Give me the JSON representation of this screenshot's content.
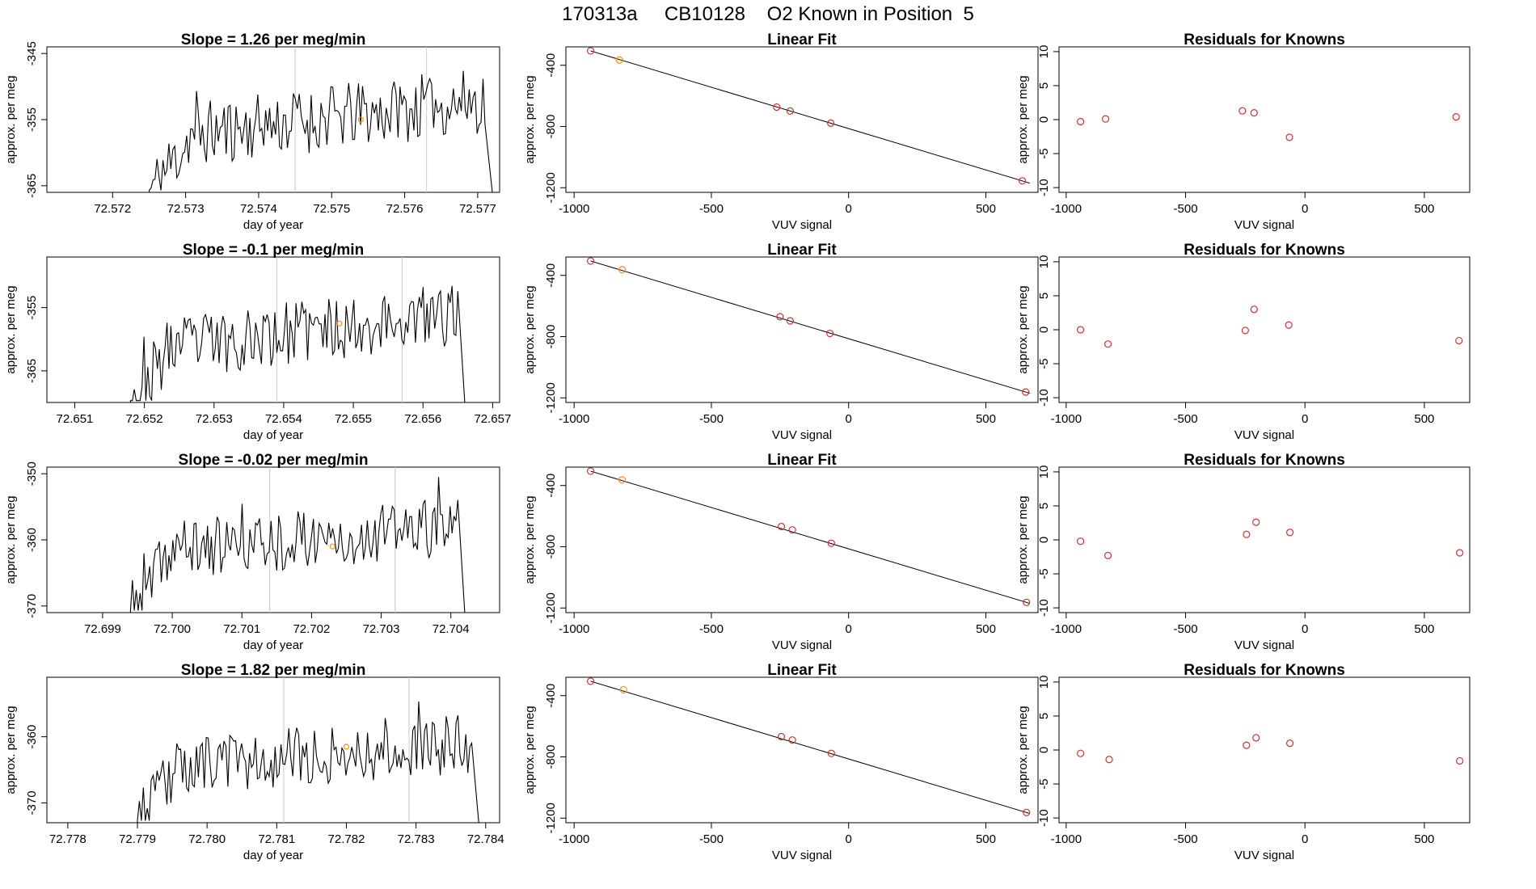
{
  "figure_title": "170313a     CB10128    O2 Known in Position  5",
  "chart_data": [
    {
      "row": 1,
      "trace": {
        "type": "line",
        "title": "Slope =  1.26  per meg/min",
        "xlabel": "day of year",
        "ylabel": "approx. per meg",
        "xlim": [
          72.5711,
          72.5773
        ],
        "ylim": [
          -366,
          -344
        ],
        "xticks": [
          "72.572",
          "72.573",
          "72.574",
          "72.575",
          "72.576",
          "72.577"
        ],
        "yticks": [
          "-345",
          "-355",
          "-365"
        ],
        "vlines": [
          72.5745,
          72.5763
        ],
        "x_start": 72.5712,
        "x_end": 72.5772,
        "flat_until": 72.5725,
        "active_end": 72.5771,
        "baseline": -366,
        "level": [
          -358,
          -352
        ],
        "amp": 5,
        "seed": 11,
        "marker": {
          "x": 72.5754,
          "y": -355
        }
      },
      "fit": {
        "type": "scatter",
        "title": "Linear Fit",
        "xlabel": "VUV signal",
        "ylabel": "approx. per meg",
        "xlim": [
          -1030,
          690
        ],
        "ylim": [
          -1230,
          -280
        ],
        "xticks": [
          -1000,
          -500,
          0,
          500
        ],
        "yticks": [
          -400,
          -800,
          -1200
        ],
        "line": {
          "x": [
            -940,
            660
          ],
          "y": [
            -306,
            -1170
          ]
        },
        "points": [
          {
            "x": -940,
            "y": -306,
            "highlight": false
          },
          {
            "x": -835,
            "y": -365,
            "highlight": true
          },
          {
            "x": -262,
            "y": -673,
            "highlight": false
          },
          {
            "x": -213,
            "y": -699,
            "highlight": false
          },
          {
            "x": -65,
            "y": -778,
            "highlight": false
          },
          {
            "x": 633,
            "y": -1155,
            "highlight": false
          }
        ]
      },
      "residuals": {
        "type": "scatter",
        "title": "Residuals for Knowns",
        "xlabel": "VUV signal",
        "ylabel": "approx. per meg",
        "xlim": [
          -1030,
          690
        ],
        "ylim": [
          -10.7,
          10.7
        ],
        "xticks": [
          -1000,
          -500,
          0,
          500
        ],
        "yticks": [
          10,
          5,
          0,
          -5,
          -10
        ],
        "points": [
          {
            "x": -940,
            "y": -0.3
          },
          {
            "x": -835,
            "y": 0.1
          },
          {
            "x": -262,
            "y": 1.3
          },
          {
            "x": -213,
            "y": 1.0
          },
          {
            "x": -65,
            "y": -2.6
          },
          {
            "x": 633,
            "y": 0.4
          }
        ]
      }
    },
    {
      "row": 2,
      "trace": {
        "type": "line",
        "title": "Slope =  -0.1  per meg/min",
        "xlabel": "day of year",
        "ylabel": "approx. per meg",
        "xlim": [
          72.6506,
          72.6571
        ],
        "ylim": [
          -370,
          -347
        ],
        "xticks": [
          "72.651",
          "72.652",
          "72.653",
          "72.654",
          "72.655",
          "72.656",
          "72.657"
        ],
        "yticks": [
          "-355",
          "-365"
        ],
        "vlines": [
          72.6539,
          72.6557
        ],
        "x_start": 72.6507,
        "x_end": 72.6566,
        "flat_until": 72.6518,
        "active_end": 72.6565,
        "baseline": -370,
        "level": [
          -362,
          -356
        ],
        "amp": 5,
        "seed": 23,
        "marker": {
          "x": 72.6548,
          "y": -357.5
        }
      },
      "fit": {
        "type": "scatter",
        "title": "Linear Fit",
        "xlabel": "VUV signal",
        "ylabel": "approx. per meg",
        "xlim": [
          -1030,
          690
        ],
        "ylim": [
          -1230,
          -280
        ],
        "xticks": [
          -1000,
          -500,
          0,
          500
        ],
        "yticks": [
          -400,
          -800,
          -1200
        ],
        "line": {
          "x": [
            -940,
            660
          ],
          "y": [
            -306,
            -1170
          ]
        },
        "points": [
          {
            "x": -940,
            "y": -306,
            "highlight": false
          },
          {
            "x": -825,
            "y": -363,
            "highlight": true
          },
          {
            "x": -250,
            "y": -670,
            "highlight": false
          },
          {
            "x": -213,
            "y": -697,
            "highlight": false
          },
          {
            "x": -68,
            "y": -779,
            "highlight": false
          },
          {
            "x": 645,
            "y": -1162,
            "highlight": false
          }
        ]
      },
      "residuals": {
        "type": "scatter",
        "title": "Residuals for Knowns",
        "xlabel": "VUV signal",
        "ylabel": "approx. per meg",
        "xlim": [
          -1030,
          690
        ],
        "ylim": [
          -10.7,
          10.7
        ],
        "xticks": [
          -1000,
          -500,
          0,
          500
        ],
        "yticks": [
          10,
          5,
          0,
          -5,
          -10
        ],
        "points": [
          {
            "x": -940,
            "y": 0.0
          },
          {
            "x": -825,
            "y": -2.1
          },
          {
            "x": -250,
            "y": -0.1
          },
          {
            "x": -213,
            "y": 3.0
          },
          {
            "x": -68,
            "y": 0.7
          },
          {
            "x": 645,
            "y": -1.6
          }
        ]
      }
    },
    {
      "row": 3,
      "trace": {
        "type": "line",
        "title": "Slope =  -0.02  per meg/min",
        "xlabel": "day of year",
        "ylabel": "approx. per meg",
        "xlim": [
          72.6982,
          72.7047
        ],
        "ylim": [
          -371,
          -349
        ],
        "xticks": [
          "72.699",
          "72.700",
          "72.701",
          "72.702",
          "72.703",
          "72.704"
        ],
        "yticks": [
          "-350",
          "-360",
          "-370"
        ],
        "vlines": [
          72.7014,
          72.7032
        ],
        "x_start": 72.6983,
        "x_end": 72.7042,
        "flat_until": 72.6994,
        "active_end": 72.7041,
        "baseline": -371,
        "level": [
          -362,
          -358
        ],
        "amp": 4.5,
        "seed": 37,
        "marker": {
          "x": 72.7023,
          "y": -361
        }
      },
      "fit": {
        "type": "scatter",
        "title": "Linear Fit",
        "xlabel": "VUV signal",
        "ylabel": "approx. per meg",
        "xlim": [
          -1030,
          690
        ],
        "ylim": [
          -1230,
          -280
        ],
        "xticks": [
          -1000,
          -500,
          0,
          500
        ],
        "yticks": [
          -400,
          -800,
          -1200
        ],
        "line": {
          "x": [
            -940,
            660
          ],
          "y": [
            -306,
            -1170
          ]
        },
        "points": [
          {
            "x": -940,
            "y": -306,
            "highlight": false
          },
          {
            "x": -825,
            "y": -363,
            "highlight": true
          },
          {
            "x": -245,
            "y": -668,
            "highlight": false
          },
          {
            "x": -205,
            "y": -690,
            "highlight": false
          },
          {
            "x": -63,
            "y": -777,
            "highlight": false
          },
          {
            "x": 648,
            "y": -1163,
            "highlight": false
          }
        ]
      },
      "residuals": {
        "type": "scatter",
        "title": "Residuals for Knowns",
        "xlabel": "VUV signal",
        "ylabel": "approx. per meg",
        "xlim": [
          -1030,
          690
        ],
        "ylim": [
          -10.7,
          10.7
        ],
        "xticks": [
          -1000,
          -500,
          0,
          500
        ],
        "yticks": [
          10,
          5,
          0,
          -5,
          -10
        ],
        "points": [
          {
            "x": -940,
            "y": -0.2
          },
          {
            "x": -825,
            "y": -2.3
          },
          {
            "x": -245,
            "y": 0.8
          },
          {
            "x": -205,
            "y": 2.6
          },
          {
            "x": -63,
            "y": 1.1
          },
          {
            "x": 648,
            "y": -1.9
          }
        ]
      }
    },
    {
      "row": 4,
      "trace": {
        "type": "line",
        "title": "Slope =  1.82  per meg/min",
        "xlabel": "day of year",
        "ylabel": "approx. per meg",
        "xlim": [
          72.7777,
          72.7842
        ],
        "ylim": [
          -373,
          -351
        ],
        "xticks": [
          "72.778",
          "72.779",
          "72.780",
          "72.781",
          "72.782",
          "72.783",
          "72.784"
        ],
        "yticks": [
          "-360",
          "-370"
        ],
        "vlines": [
          72.7811,
          72.7829
        ],
        "x_start": 72.7778,
        "x_end": 72.7839,
        "flat_until": 72.779,
        "active_end": 72.7838,
        "baseline": -373,
        "level": [
          -365,
          -361
        ],
        "amp": 4.5,
        "seed": 53,
        "marker": {
          "x": 72.782,
          "y": -361.5
        }
      },
      "fit": {
        "type": "scatter",
        "title": "Linear Fit",
        "xlabel": "VUV signal",
        "ylabel": "approx. per meg",
        "xlim": [
          -1030,
          690
        ],
        "ylim": [
          -1230,
          -280
        ],
        "xticks": [
          -1000,
          -500,
          0,
          500
        ],
        "yticks": [
          -400,
          -800,
          -1200
        ],
        "line": {
          "x": [
            -940,
            660
          ],
          "y": [
            -306,
            -1170
          ]
        },
        "points": [
          {
            "x": -940,
            "y": -306,
            "highlight": false
          },
          {
            "x": -820,
            "y": -362,
            "highlight": true
          },
          {
            "x": -245,
            "y": -668,
            "highlight": false
          },
          {
            "x": -205,
            "y": -690,
            "highlight": false
          },
          {
            "x": -63,
            "y": -777,
            "highlight": false
          },
          {
            "x": 648,
            "y": -1163,
            "highlight": false
          }
        ]
      },
      "residuals": {
        "type": "scatter",
        "title": "Residuals for Knowns",
        "xlabel": "VUV signal",
        "ylabel": "approx. per meg",
        "xlim": [
          -1030,
          690
        ],
        "ylim": [
          -10.7,
          10.7
        ],
        "xticks": [
          -1000,
          -500,
          0,
          500
        ],
        "yticks": [
          10,
          5,
          0,
          -5,
          -10
        ],
        "points": [
          {
            "x": -940,
            "y": -0.5
          },
          {
            "x": -820,
            "y": -1.4
          },
          {
            "x": -245,
            "y": 0.7
          },
          {
            "x": -205,
            "y": 1.8
          },
          {
            "x": -63,
            "y": 1.0
          },
          {
            "x": 648,
            "y": -1.6
          }
        ]
      }
    }
  ],
  "colors": {
    "line": "#000000",
    "point": "#cd3333",
    "highlight": "#ff9500",
    "vline": "#c8c8c8",
    "axis": "#000000"
  }
}
